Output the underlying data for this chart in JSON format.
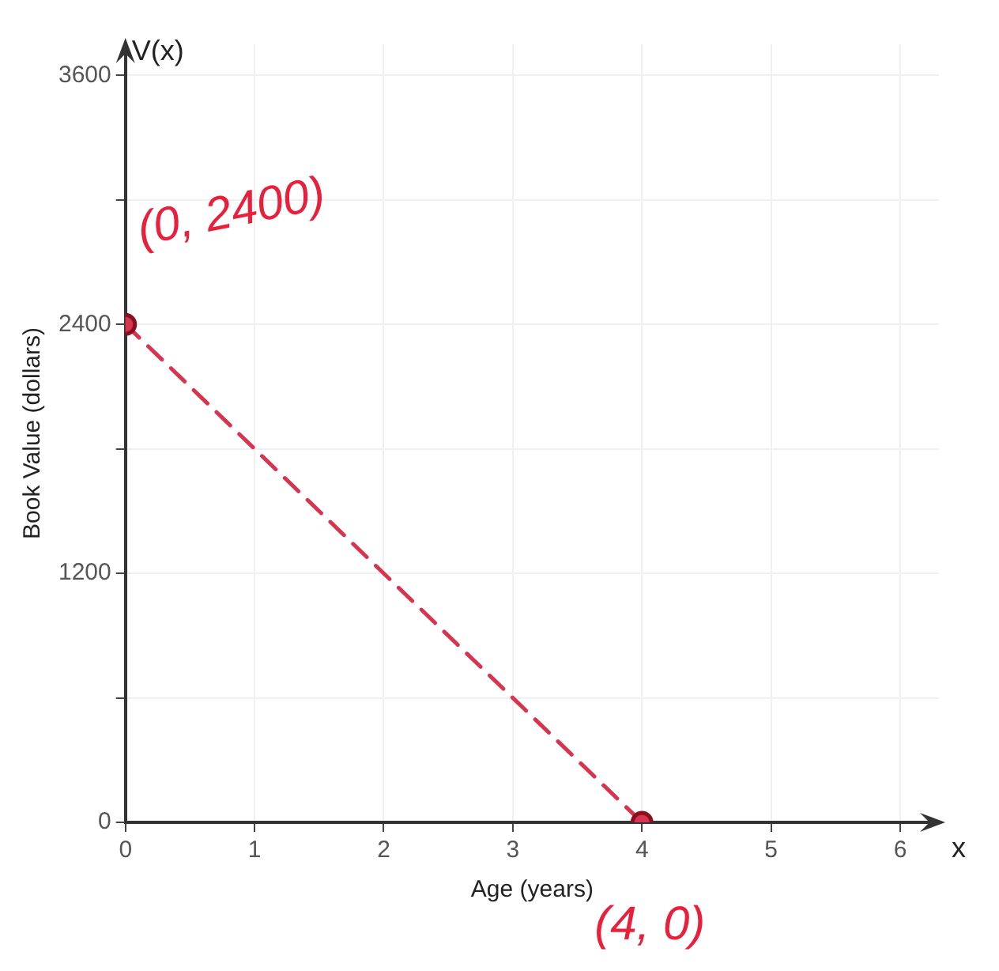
{
  "chart_data": {
    "type": "line",
    "xlabel": "Age (years)",
    "ylabel": "Book Value (dollars)",
    "x": [
      0,
      4
    ],
    "series": [
      {
        "color": "#d8344f",
        "values": [
          2400,
          0
        ]
      }
    ],
    "xlim": [
      0,
      6.3
    ],
    "xticks": [
      0,
      1,
      2,
      3,
      4,
      5,
      6
    ],
    "ylim": [
      0,
      3750
    ],
    "yticks": [
      0,
      {
        "value": 600,
        "label": null
      },
      1200,
      {
        "value": 1800,
        "label": null
      },
      2400,
      {
        "value": 3000,
        "label": null
      },
      3600
    ],
    "annotations": [
      "V(x)",
      "x",
      {
        "text": "(0, 2400)",
        "x": 0,
        "y": 2400
      },
      {
        "text": "(4, 0)",
        "x": 4,
        "y": 0
      }
    ],
    "grid": true,
    "legend": false,
    "marker": "circle",
    "line_style": "dashed"
  }
}
